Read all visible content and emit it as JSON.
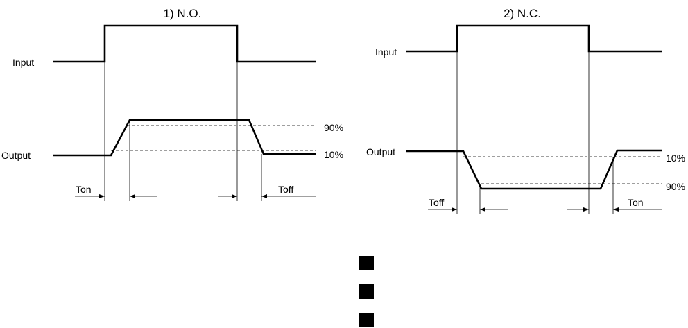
{
  "diagram_no": {
    "title": "1) N.O.",
    "input_label": "Input",
    "output_label": "Output",
    "level_90": "90%",
    "level_10": "10%",
    "ton_label": "Ton",
    "toff_label": "Toff"
  },
  "diagram_nc": {
    "title": "2) N.C.",
    "input_label": "Input",
    "output_label": "Output",
    "level_10": "10%",
    "level_90": "90%",
    "toff_label": "Toff",
    "ton_label": "Ton"
  },
  "bullets": {
    "count": 3,
    "color": "#000000"
  }
}
